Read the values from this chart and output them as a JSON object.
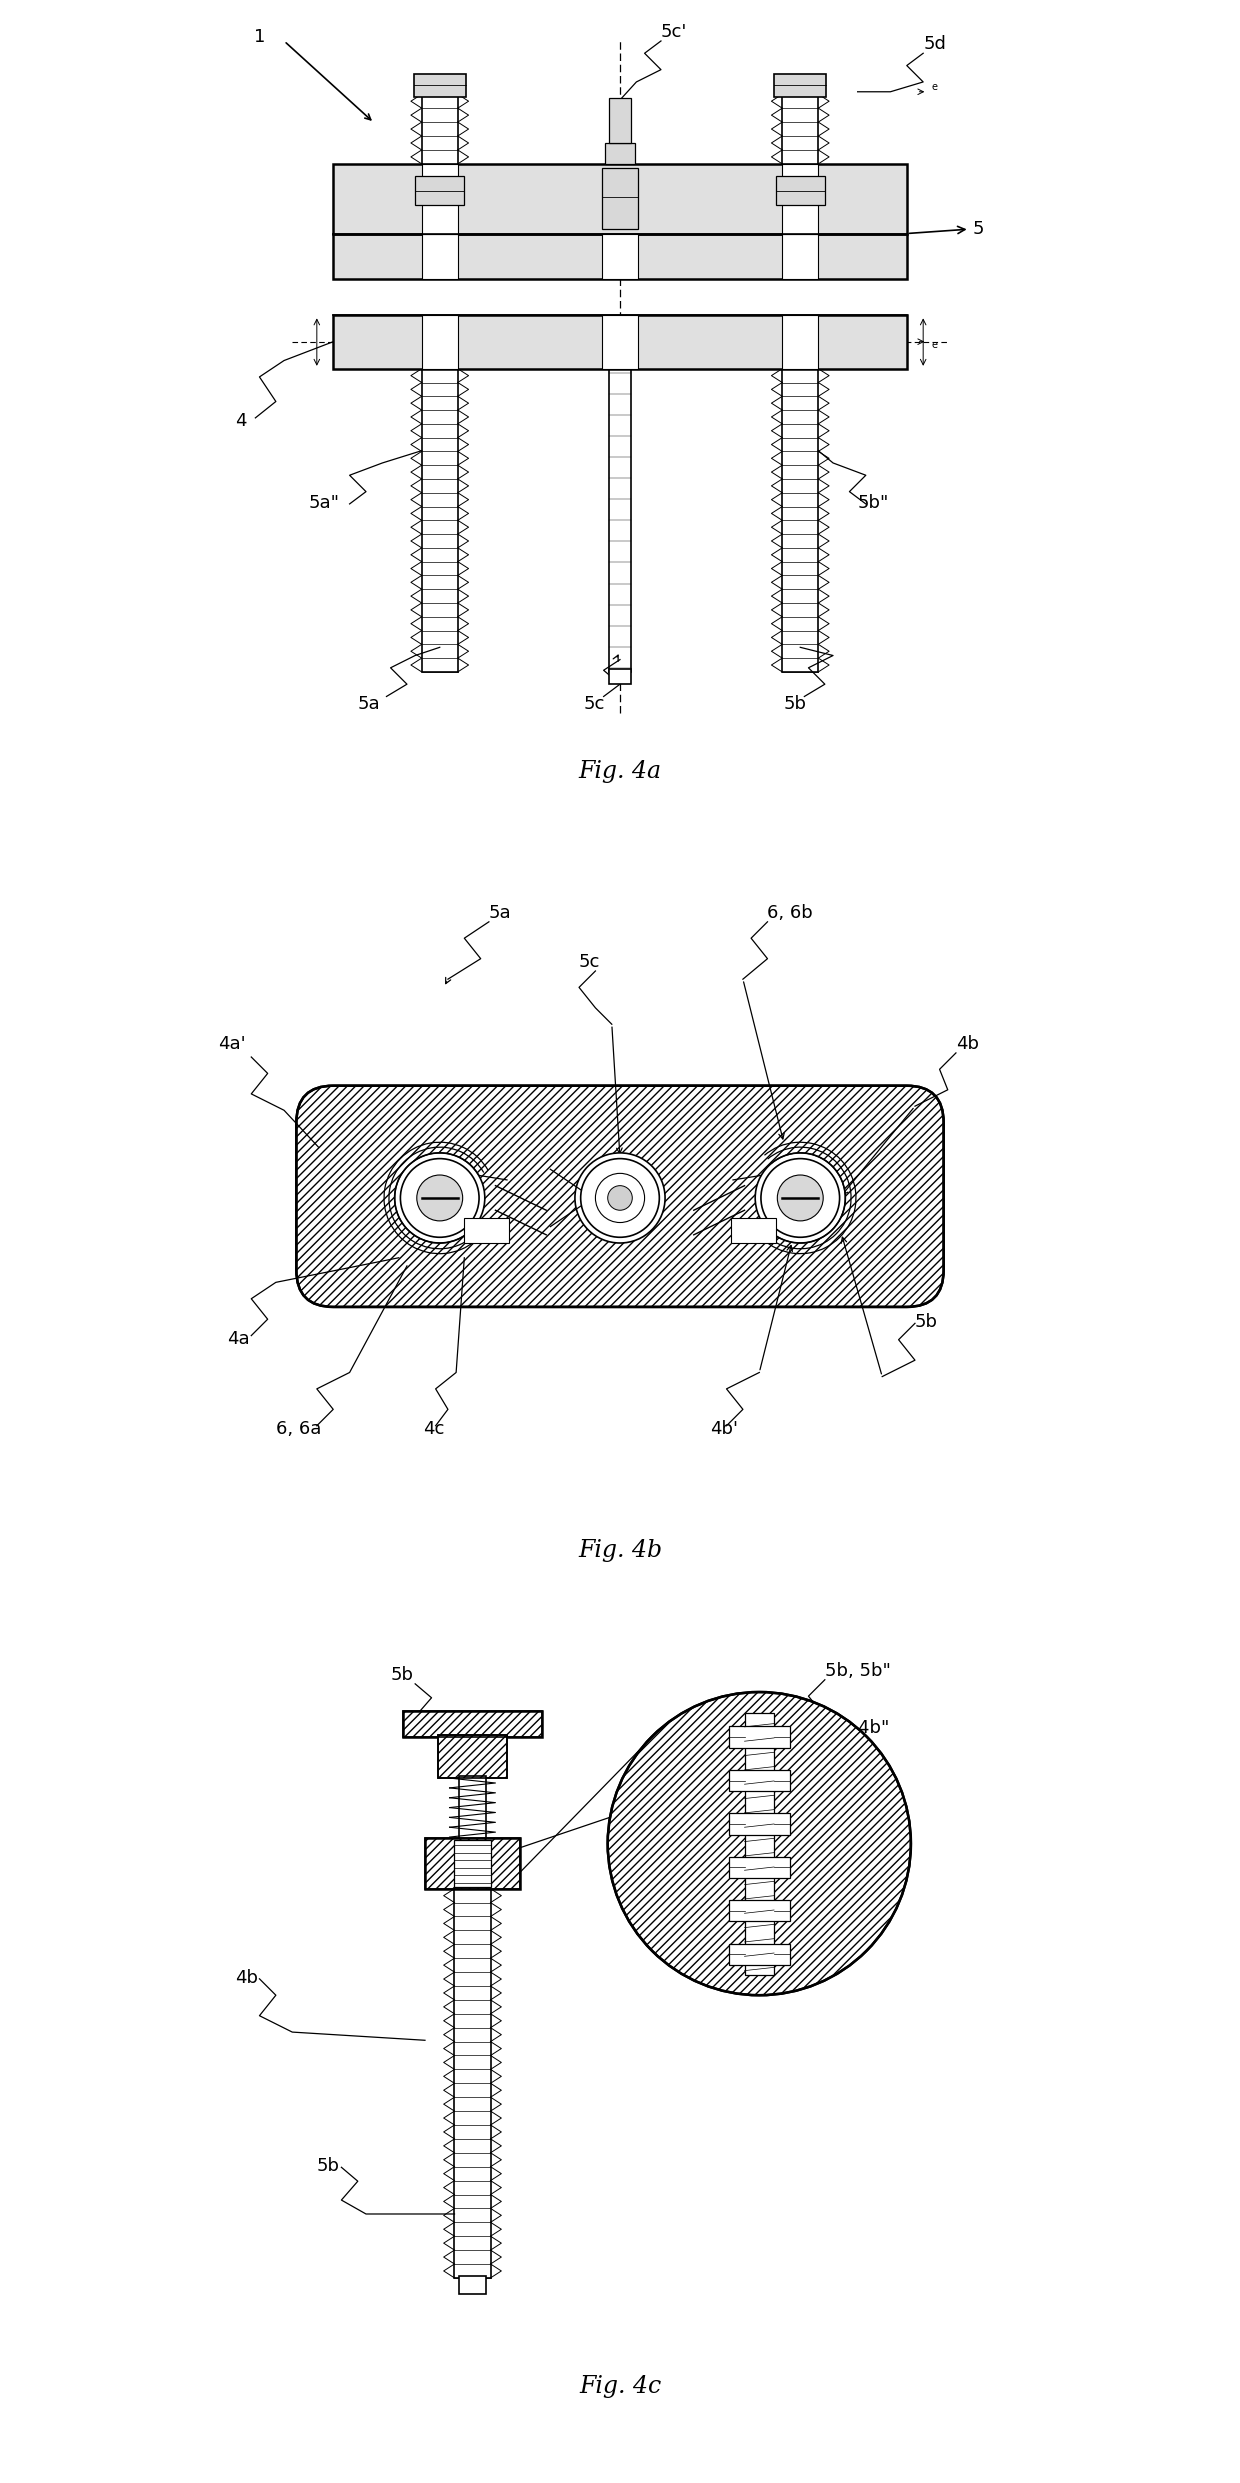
{
  "bg_color": "#ffffff",
  "line_color": "#000000",
  "fig_width": 12.4,
  "fig_height": 24.83,
  "fig4a_title": "Fig. 4a",
  "fig4b_title": "Fig. 4b",
  "fig4c_title": "Fig. 4c",
  "label_fontsize": 13,
  "title_fontsize": 17,
  "lw": 1.2,
  "lw2": 1.8
}
